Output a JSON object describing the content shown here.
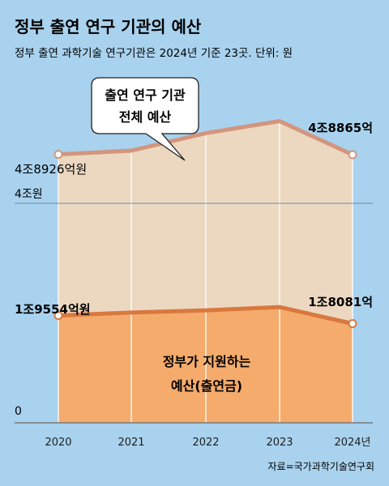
{
  "colors": {
    "background": "#a9d2ee",
    "total_line": "#d3957d",
    "total_fill": "#ecd8c0",
    "gov_line": "#d9783f",
    "gov_fill": "#f4ab6c",
    "axis": "#6a8ea8",
    "text": "#1e1e1e"
  },
  "chart_data": {
    "type": "area",
    "title": "정부 출연 연구 기관의 예산",
    "subtitle": "정부 출연 과학기술 연구기관은 2024년 기준 23곳. 단위: 원",
    "x": [
      "2020",
      "2021",
      "2022",
      "2023",
      "2024년"
    ],
    "ylim": [
      0,
      53000
    ],
    "series": [
      {
        "name": "출연 연구 기관 전체 예산",
        "values": [
          48926,
          49600,
          52800,
          55000,
          48865
        ]
      },
      {
        "name": "정부가 지원하는 예산(출연금)",
        "values": [
          19554,
          20100,
          20500,
          21100,
          18081
        ]
      }
    ],
    "reference_line": {
      "value": 40000,
      "label": "4조원"
    },
    "zero_label": "0",
    "value_labels": {
      "total_start": "4조8926억원",
      "total_end": "4조8865억",
      "gov_start": "1조9554억원",
      "gov_end": "1조8081억"
    },
    "callout": {
      "line1": "출연 연구 기관",
      "line2": "전체 예산"
    },
    "area_label": {
      "line1": "정부가 지원하는",
      "line2": "예산(출연금)"
    },
    "source": "자료=국가과학기술연구회"
  }
}
